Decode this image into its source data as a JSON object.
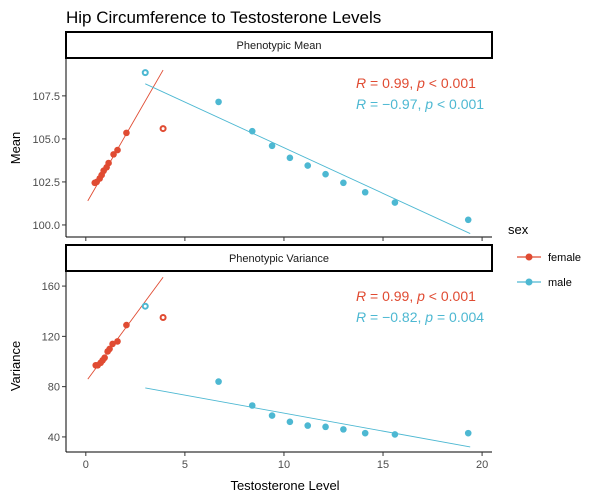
{
  "chart_data": {
    "type": "scatter",
    "title": "Hip Circumference to Testosterone Levels",
    "xlabel": "Testosterone Level",
    "xlim": [
      -1,
      20.5
    ],
    "xticks": [
      0,
      5,
      10,
      15,
      20
    ],
    "grid": false,
    "legend": {
      "title": "sex",
      "position": "right",
      "entries": [
        {
          "name": "female",
          "color": "#E04B32"
        },
        {
          "name": "male",
          "color": "#4DB8D2"
        }
      ]
    },
    "panels": [
      {
        "strip": "Phenotypic Mean",
        "ylabel": "Mean",
        "ylim": [
          99.3,
          109.7
        ],
        "yticks": [
          "100.0",
          "102.5",
          "105.0",
          "107.5"
        ],
        "series": [
          {
            "name": "female",
            "color": "#E04B32",
            "points": [
              [
                0.45,
                102.45
              ],
              [
                0.55,
                102.5
              ],
              [
                0.7,
                102.7
              ],
              [
                0.8,
                102.9
              ],
              [
                0.9,
                103.15
              ],
              [
                1.05,
                103.35
              ],
              [
                1.15,
                103.6
              ],
              [
                1.4,
                104.1
              ],
              [
                1.6,
                104.35
              ],
              [
                2.05,
                105.35
              ]
            ],
            "outlier": [
              3.9,
              105.6
            ],
            "fit": [
              [
                0.1,
                101.4
              ],
              [
                3.9,
                109.0
              ]
            ],
            "annotation": {
              "r": "0.99",
              "p": "< 0.001"
            }
          },
          {
            "name": "male",
            "color": "#4DB8D2",
            "points": [
              [
                6.7,
                107.15
              ],
              [
                8.4,
                105.45
              ],
              [
                9.4,
                104.6
              ],
              [
                10.3,
                103.9
              ],
              [
                11.2,
                103.45
              ],
              [
                12.1,
                102.95
              ],
              [
                13.0,
                102.45
              ],
              [
                14.1,
                101.9
              ],
              [
                15.6,
                101.3
              ],
              [
                19.3,
                100.3
              ]
            ],
            "outlier": [
              3.0,
              108.85
            ],
            "fit": [
              [
                3.0,
                108.2
              ],
              [
                19.4,
                99.5
              ]
            ],
            "annotation": {
              "r": "−0.97",
              "p": "< 0.001"
            }
          }
        ]
      },
      {
        "strip": "Phenotypic Variance",
        "ylabel": "Variance",
        "ylim": [
          28,
          172
        ],
        "yticks": [
          "40",
          "80",
          "120",
          "160"
        ],
        "series": [
          {
            "name": "female",
            "color": "#E04B32",
            "points": [
              [
                0.5,
                97
              ],
              [
                0.6,
                97
              ],
              [
                0.75,
                99
              ],
              [
                0.85,
                101
              ],
              [
                0.95,
                103
              ],
              [
                1.1,
                108
              ],
              [
                1.2,
                110
              ],
              [
                1.35,
                114
              ],
              [
                1.6,
                116
              ],
              [
                2.05,
                129
              ]
            ],
            "outlier": [
              3.9,
              135
            ],
            "fit": [
              [
                0.1,
                86
              ],
              [
                3.9,
                167
              ]
            ],
            "annotation": {
              "r": "0.99",
              "p": "< 0.001"
            }
          },
          {
            "name": "male",
            "color": "#4DB8D2",
            "points": [
              [
                6.7,
                84
              ],
              [
                8.4,
                65
              ],
              [
                9.4,
                57
              ],
              [
                10.3,
                52
              ],
              [
                11.2,
                49
              ],
              [
                12.1,
                48
              ],
              [
                13.0,
                46
              ],
              [
                14.1,
                43
              ],
              [
                15.6,
                42
              ],
              [
                19.3,
                43
              ]
            ],
            "outlier": [
              3.0,
              144
            ],
            "fit": [
              [
                3.0,
                79
              ],
              [
                19.4,
                32
              ]
            ],
            "annotation": {
              "r": "−0.82",
              "p": "= 0.004"
            }
          }
        ]
      }
    ]
  }
}
